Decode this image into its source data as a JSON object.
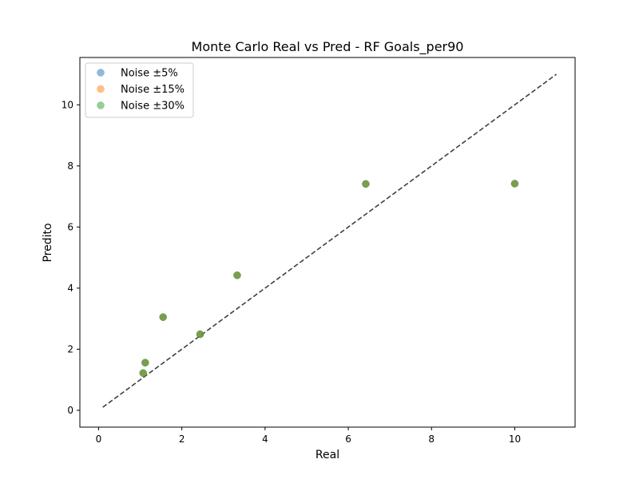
{
  "chart_data": {
    "type": "scatter",
    "title": "Monte Carlo Real vs Pred - RF Goals_per90",
    "xlabel": "Real",
    "ylabel": "Predito",
    "xlim": [
      -0.45,
      11.45
    ],
    "ylim": [
      -0.55,
      11.55
    ],
    "xticks": [
      0,
      2,
      4,
      6,
      8,
      10
    ],
    "yticks": [
      0,
      2,
      4,
      6,
      8,
      10
    ],
    "grid": false,
    "legend_position": "top-left",
    "reference_line": {
      "x": [
        0.1,
        11.0
      ],
      "y": [
        0.1,
        11.0
      ],
      "style": "dashed",
      "color": "#404040"
    },
    "series": [
      {
        "name": "Noise ±5%",
        "color": "#1f77b4",
        "points": [
          [
            1.07,
            1.22
          ],
          [
            1.12,
            1.56
          ],
          [
            1.55,
            3.05
          ],
          [
            2.44,
            2.49
          ],
          [
            3.33,
            4.42
          ],
          [
            6.42,
            7.41
          ],
          [
            10.0,
            7.42
          ]
        ]
      },
      {
        "name": "Noise ±15%",
        "color": "#ff7f0e",
        "points": [
          [
            1.07,
            1.22
          ],
          [
            1.12,
            1.56
          ],
          [
            1.55,
            3.05
          ],
          [
            2.44,
            2.49
          ],
          [
            3.33,
            4.42
          ],
          [
            6.42,
            7.41
          ],
          [
            10.0,
            7.42
          ]
        ]
      },
      {
        "name": "Noise ±30%",
        "color": "#2ca02c",
        "points": [
          [
            1.07,
            1.22
          ],
          [
            1.12,
            1.56
          ],
          [
            1.55,
            3.05
          ],
          [
            2.44,
            2.49
          ],
          [
            3.33,
            4.42
          ],
          [
            6.42,
            7.41
          ],
          [
            10.0,
            7.42
          ]
        ]
      }
    ]
  }
}
